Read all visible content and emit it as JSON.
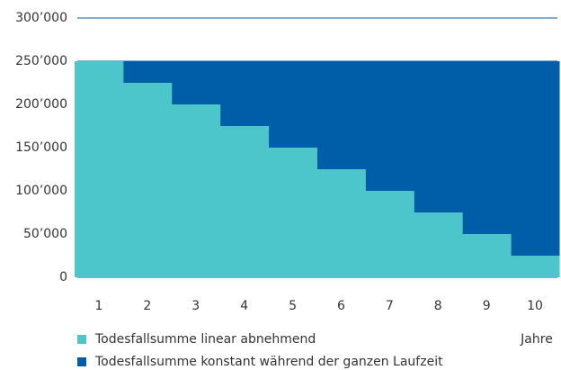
{
  "chart_data": {
    "type": "step-area",
    "x_label": "Jahre",
    "categories": [
      "1",
      "2",
      "3",
      "4",
      "5",
      "6",
      "7",
      "8",
      "9",
      "10"
    ],
    "series": [
      {
        "name": "Todesfallsumme linear abnehmend",
        "color": "#4cc5cb",
        "values": [
          250000,
          225000,
          200000,
          175000,
          150000,
          125000,
          100000,
          75000,
          50000,
          25000
        ]
      },
      {
        "name": "Todesfallsumme konstant während der ganzen Laufzeit",
        "color": "#005da8",
        "values": [
          250000,
          250000,
          250000,
          250000,
          250000,
          250000,
          250000,
          250000,
          250000,
          250000
        ]
      }
    ],
    "ylim": [
      0,
      300000
    ],
    "yticks": [
      0,
      {
        "value": 50000,
        "label": "50’000"
      },
      {
        "value": 100000,
        "label": "100’000"
      },
      {
        "value": 150000,
        "label": "150’000"
      },
      {
        "value": 200000,
        "label": "200’000"
      },
      {
        "value": 250000,
        "label": "250’000"
      },
      {
        "value": 300000,
        "label": "300’000"
      }
    ],
    "grid": true
  }
}
